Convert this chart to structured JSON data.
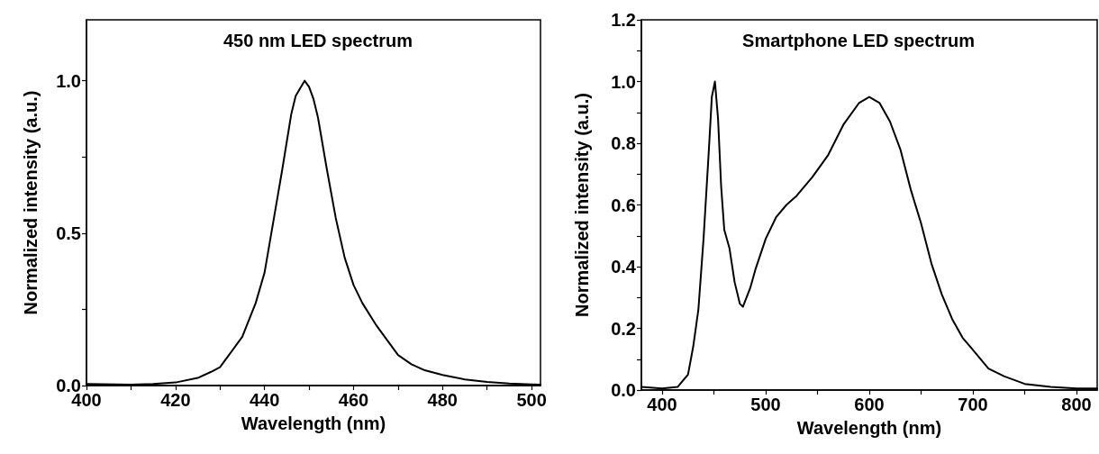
{
  "chart_data": [
    {
      "type": "line",
      "title": "450 nm LED spectrum",
      "xlabel": "Wavelength (nm)",
      "ylabel": "Normalized intensity (a.u.)",
      "xlim": [
        400,
        502
      ],
      "ylim": [
        0,
        1.2
      ],
      "xticks": [
        400,
        {
          "value": 410,
          "label": null
        },
        420,
        {
          "value": 430,
          "label": null
        },
        440,
        {
          "value": 450,
          "label": null
        },
        460,
        {
          "value": 470,
          "label": null
        },
        480,
        {
          "value": 490,
          "label": null
        },
        500
      ],
      "yticks": [
        {
          "value": 0,
          "label": "0.0"
        },
        {
          "value": 0.25,
          "label": null
        },
        {
          "value": 0.5,
          "label": "0.5"
        },
        {
          "value": 0.75,
          "label": null
        },
        {
          "value": 1,
          "label": "1.0"
        }
      ],
      "grid": false,
      "marker": "none",
      "line_style": "solid",
      "series": [
        {
          "color": "#000000",
          "x": [
            400,
            410,
            415,
            420,
            425,
            428,
            430,
            432,
            435,
            438,
            440,
            442,
            444,
            446,
            447,
            449,
            450,
            451,
            452,
            454,
            456,
            458,
            460,
            462,
            465,
            468,
            470,
            473,
            476,
            480,
            485,
            490,
            495,
            500,
            502
          ],
          "values": [
            0.005,
            0.003,
            0.005,
            0.01,
            0.025,
            0.045,
            0.06,
            0.1,
            0.16,
            0.27,
            0.37,
            0.54,
            0.71,
            0.89,
            0.95,
            1.0,
            0.98,
            0.94,
            0.88,
            0.71,
            0.55,
            0.42,
            0.33,
            0.27,
            0.2,
            0.14,
            0.1,
            0.07,
            0.05,
            0.035,
            0.02,
            0.012,
            0.007,
            0.004,
            0.003
          ]
        }
      ]
    },
    {
      "type": "line",
      "title": "Smartphone LED spectrum",
      "xlabel": "Wavelength (nm)",
      "ylabel": "Normalized intensity (a.u.)",
      "xlim": [
        380,
        820
      ],
      "ylim": [
        0,
        1.2
      ],
      "xticks": [
        400,
        {
          "value": 450,
          "label": null
        },
        500,
        {
          "value": 550,
          "label": null
        },
        600,
        {
          "value": 650,
          "label": null
        },
        700,
        {
          "value": 750,
          "label": null
        },
        800
      ],
      "yticks": [
        {
          "value": 0,
          "label": "0.0"
        },
        {
          "value": 0.1,
          "label": null
        },
        {
          "value": 0.2,
          "label": "0.2"
        },
        {
          "value": 0.3,
          "label": null
        },
        {
          "value": 0.4,
          "label": "0.4"
        },
        {
          "value": 0.5,
          "label": null
        },
        {
          "value": 0.6,
          "label": "0.6"
        },
        {
          "value": 0.7,
          "label": null
        },
        {
          "value": 0.8,
          "label": "0.8"
        },
        {
          "value": 0.9,
          "label": null
        },
        {
          "value": 1,
          "label": "1.0"
        },
        {
          "value": 1.1,
          "label": null
        },
        {
          "value": 1.2,
          "label": "1.2"
        }
      ],
      "grid": false,
      "marker": "none",
      "line_style": "solid",
      "series": [
        {
          "color": "#000000",
          "x": [
            380,
            400,
            415,
            420,
            425,
            430,
            435,
            440,
            445,
            448,
            451,
            454,
            457,
            460,
            465,
            470,
            475,
            478,
            485,
            490,
            500,
            510,
            520,
            530,
            545,
            560,
            575,
            590,
            600,
            610,
            620,
            630,
            640,
            650,
            660,
            670,
            680,
            690,
            700,
            715,
            730,
            750,
            775,
            800,
            820
          ],
          "values": [
            0.01,
            0.005,
            0.01,
            0.03,
            0.05,
            0.14,
            0.26,
            0.49,
            0.77,
            0.95,
            1.0,
            0.88,
            0.66,
            0.52,
            0.46,
            0.35,
            0.28,
            0.27,
            0.33,
            0.39,
            0.49,
            0.56,
            0.6,
            0.63,
            0.69,
            0.76,
            0.86,
            0.93,
            0.95,
            0.93,
            0.87,
            0.78,
            0.65,
            0.54,
            0.41,
            0.31,
            0.23,
            0.17,
            0.13,
            0.07,
            0.045,
            0.02,
            0.01,
            0.005,
            0.005
          ]
        }
      ]
    }
  ]
}
